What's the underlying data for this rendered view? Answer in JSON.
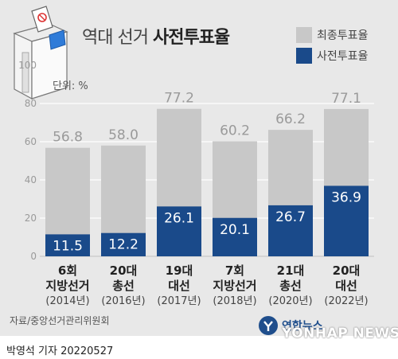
{
  "title": {
    "light": "역대 선거",
    "bold": "사전투표율"
  },
  "legend": [
    {
      "label": "최종투표율",
      "color": "#c8c8c8"
    },
    {
      "label": "사전투표율",
      "color": "#1a4a8a"
    }
  ],
  "unit_label": "단위: %",
  "source": "자료/중앙선거관리위원회",
  "byline": "박영석 기자  20220527",
  "logo": {
    "korean": "연합뉴스",
    "english": "YONHAP NEWS"
  },
  "chart_data": {
    "type": "bar",
    "categories": [
      {
        "line1": "6회",
        "line2": "지방선거",
        "year": "(2014년)"
      },
      {
        "line1": "20대",
        "line2": "총선",
        "year": "(2016년)"
      },
      {
        "line1": "19대",
        "line2": "대선",
        "year": "(2017년)"
      },
      {
        "line1": "7회",
        "line2": "지방선거",
        "year": "(2018년)"
      },
      {
        "line1": "21대",
        "line2": "총선",
        "year": "(2020년)"
      },
      {
        "line1": "20대",
        "line2": "대선",
        "year": "(2022년)"
      }
    ],
    "series": [
      {
        "name": "최종투표율",
        "values": [
          56.8,
          58.0,
          77.2,
          60.2,
          66.2,
          77.1
        ]
      },
      {
        "name": "사전투표율",
        "values": [
          11.5,
          12.2,
          26.1,
          20.1,
          26.7,
          36.9
        ]
      }
    ],
    "y_ticks": [
      0,
      20,
      40,
      60,
      80,
      100
    ],
    "ylim": [
      0,
      100
    ],
    "grid": true,
    "colors": {
      "final": "#c8c8c8",
      "early": "#1a4a8a",
      "final_label": "#9a9a9a",
      "early_label": "#ffffff"
    }
  }
}
